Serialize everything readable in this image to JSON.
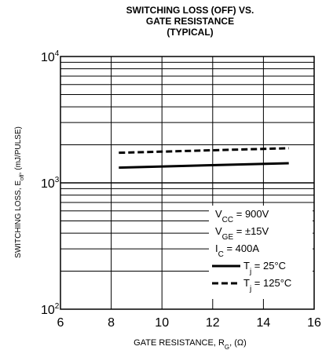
{
  "chart_data": {
    "type": "line",
    "title": [
      "SWITCHING LOSS (OFF) VS.",
      "GATE RESISTANCE",
      "(TYPICAL)"
    ],
    "xlabel": {
      "main": "GATE RESISTANCE, R",
      "sub": "G",
      "tail": ", (Ω)"
    },
    "ylabel": {
      "main": "SWITCHING LOSS, E",
      "sub": "off",
      "tail": ", (mJ/PULSE)"
    },
    "x_scale": "linear",
    "y_scale": "log",
    "xlim": [
      6,
      16
    ],
    "ylim": [
      100,
      10000
    ],
    "x_ticks": [
      6,
      8,
      10,
      12,
      14,
      16
    ],
    "y_ticks": [
      {
        "value": 10000,
        "base": "10",
        "exp": "4"
      },
      {
        "value": 1000,
        "base": "10",
        "exp": "3"
      },
      {
        "value": 100,
        "base": "10",
        "exp": "2"
      }
    ],
    "grid": true,
    "conditions": [
      {
        "main": "V",
        "sub": "CC",
        "tail": " = 900V"
      },
      {
        "main": "V",
        "sub": "GE",
        "tail": " = ±15V"
      },
      {
        "main": "I",
        "sub": "C",
        "tail": " = 400A"
      }
    ],
    "series": [
      {
        "name": {
          "main": "T",
          "sub": "j",
          "tail": " = 25°C"
        },
        "style": "solid",
        "color": "#000000",
        "x": [
          8.3,
          15
        ],
        "y": [
          1320,
          1430
        ]
      },
      {
        "name": {
          "main": "T",
          "sub": "j",
          "tail": " = 125°C"
        },
        "style": "dashed",
        "color": "#000000",
        "x": [
          8.3,
          15
        ],
        "y": [
          1730,
          1880
        ]
      }
    ]
  }
}
